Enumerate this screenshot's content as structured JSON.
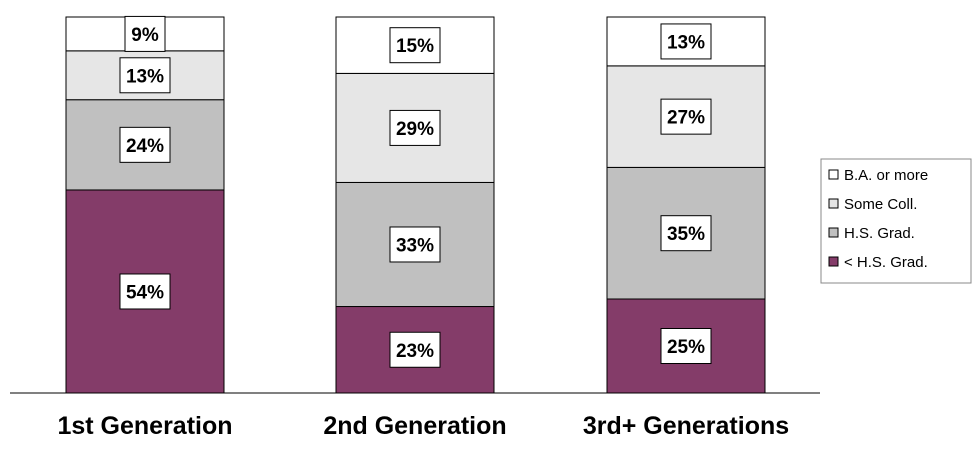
{
  "chart_data": {
    "type": "bar",
    "stacked": true,
    "categories": [
      "1st Generation",
      "2nd Generation",
      "3rd+ Generations"
    ],
    "series": [
      {
        "name": "< H.S. Grad.",
        "values": [
          54,
          23,
          25
        ],
        "color": "#843C69"
      },
      {
        "name": "H.S. Grad.",
        "values": [
          24,
          33,
          35
        ],
        "color": "#C0C0C0"
      },
      {
        "name": "Some Coll.",
        "values": [
          13,
          29,
          27
        ],
        "color": "#E6E6E6"
      },
      {
        "name": "B.A. or more",
        "values": [
          9,
          15,
          13
        ],
        "color": "#FFFFFF"
      }
    ],
    "ylim": [
      0,
      100
    ],
    "legend_position": "right",
    "legend_order": [
      "B.A. or more",
      "Some Coll.",
      "H.S. Grad.",
      "< H.S. Grad."
    ],
    "data_label_suffix": "%",
    "grid": false
  }
}
